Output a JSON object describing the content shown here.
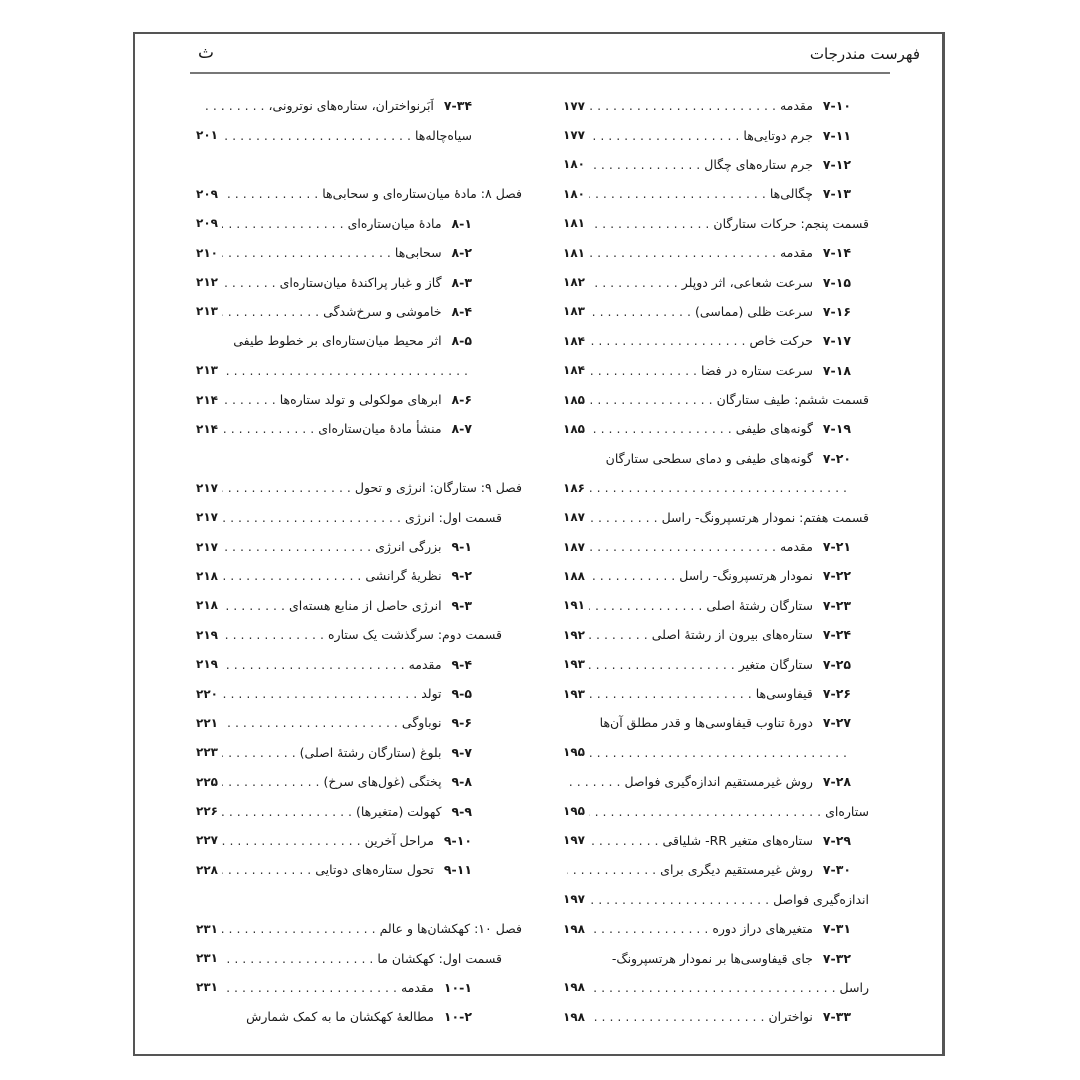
{
  "header": {
    "title": "فهرست مندرجات",
    "page_letter": "ث"
  },
  "columns": {
    "right": [
      {
        "type": "item",
        "num": "۷-۱۰",
        "title": "مقدمه",
        "page": "۱۷۷"
      },
      {
        "type": "item",
        "num": "۷-۱۱",
        "title": "جرم دوتایی‌ها",
        "page": "۱۷۷"
      },
      {
        "type": "item",
        "num": "۷-۱۲",
        "title": "جرم ستاره‌های چگال",
        "page": "۱۸۰"
      },
      {
        "type": "item",
        "num": "۷-۱۳",
        "title": "چگالی‌ها",
        "page": "۱۸۰"
      },
      {
        "type": "section",
        "title": "قسمت پنجم: حرکات ستارگان",
        "page": "۱۸۱"
      },
      {
        "type": "item",
        "num": "۷-۱۴",
        "title": "مقدمه",
        "page": "۱۸۱"
      },
      {
        "type": "item",
        "num": "۷-۱۵",
        "title": "سرعت شعاعی، اثر دوپلر",
        "page": "۱۸۲"
      },
      {
        "type": "item",
        "num": "۷-۱۶",
        "title": "سرعت ظلی (مماسی)",
        "page": "۱۸۳"
      },
      {
        "type": "item",
        "num": "۷-۱۷",
        "title": "حرکت خاص",
        "page": "۱۸۴"
      },
      {
        "type": "item",
        "num": "۷-۱۸",
        "title": "سرعت ستاره در فضا",
        "page": "۱۸۴"
      },
      {
        "type": "section",
        "title": "قسمت ششم: طیف ستارگان",
        "page": "۱۸۵"
      },
      {
        "type": "item",
        "num": "۷-۱۹",
        "title": "گونه‌های طیفی",
        "page": "۱۸۵"
      },
      {
        "type": "item",
        "num": "۷-۲۰",
        "title": "گونه‌های طیفی و دمای سطحی ستارگان"
      },
      {
        "type": "dots",
        "page": "۱۸۶"
      },
      {
        "type": "section",
        "title": "قسمت هفتم: نمودار هرتسپرونگ- راسل",
        "page": "۱۸۷"
      },
      {
        "type": "item",
        "num": "۷-۲۱",
        "title": "مقدمه",
        "page": "۱۸۷"
      },
      {
        "type": "item",
        "num": "۷-۲۲",
        "title": "نمودار هرتسپرونگ- راسل",
        "page": "۱۸۸"
      },
      {
        "type": "item",
        "num": "۷-۲۳",
        "title": "ستارگان رشتهٔ اصلی",
        "page": "۱۹۱"
      },
      {
        "type": "item",
        "num": "۷-۲۴",
        "title": "ستاره‌های بیرون از رشتهٔ اصلی",
        "page": "۱۹۲"
      },
      {
        "type": "item",
        "num": "۷-۲۵",
        "title": "ستارگان متغیر",
        "page": "۱۹۳"
      },
      {
        "type": "item",
        "num": "۷-۲۶",
        "title": "قیفاوسی‌ها",
        "page": "۱۹۳"
      },
      {
        "type": "item",
        "num": "۷-۲۷",
        "title": "دورهٔ تناوب قیفاوسی‌ها و قدر مطلق آن‌ها"
      },
      {
        "type": "dots",
        "page": "۱۹۵"
      },
      {
        "type": "item",
        "num": "۷-۲۸",
        "title": "روش غیرمستقیم اندازه‌گیری فواصل",
        "leader": true
      },
      {
        "type": "cont",
        "title": "ستاره‌ای",
        "page": "۱۹۵"
      },
      {
        "type": "item",
        "num": "۷-۲۹",
        "title": "ستاره‌های متغیر RR- شلیاقی",
        "page": "۱۹۷"
      },
      {
        "type": "item",
        "num": "۷-۳۰",
        "title": "روش غیرمستقیم دیگری برای",
        "leader": true
      },
      {
        "type": "cont",
        "title": "اندازه‌گیری فواصل",
        "page": "۱۹۷"
      },
      {
        "type": "item",
        "num": "۷-۳۱",
        "title": "متغیرهای دراز دوره",
        "page": "۱۹۸"
      },
      {
        "type": "item",
        "num": "۷-۳۲",
        "title": "جای قیفاوسی‌ها بر نمودار هرتسپرونگ-"
      },
      {
        "type": "cont",
        "title": "راسل",
        "page": "۱۹۸"
      },
      {
        "type": "item",
        "num": "۷-۳۳",
        "title": "نواختران",
        "page": "۱۹۸"
      }
    ],
    "left": [
      {
        "type": "first",
        "num": "۷-۳۴",
        "title": "اَبَرنواختران، ستاره‌های نوترونی،",
        "leader": true
      },
      {
        "type": "cont",
        "title": "سیاه‌چاله‌ها",
        "page": "۲۰۱"
      },
      {
        "type": "blank"
      },
      {
        "type": "chapter",
        "title": "فصل ۸: مادهٔ میان‌ستاره‌ای و سحابی‌ها",
        "page": "۲۰۹"
      },
      {
        "type": "item",
        "num": "۸-۱",
        "title": "مادهٔ میان‌ستاره‌ای",
        "page": "۲۰۹"
      },
      {
        "type": "item",
        "num": "۸-۲",
        "title": "سحابی‌ها",
        "page": "۲۱۰"
      },
      {
        "type": "item",
        "num": "۸-۳",
        "title": "گاز و غبار پراکندهٔ میان‌ستاره‌ای",
        "page": "۲۱۲"
      },
      {
        "type": "item",
        "num": "۸-۴",
        "title": "خاموشی و سرخ‌شدگی",
        "page": "۲۱۳"
      },
      {
        "type": "item",
        "num": "۸-۵",
        "title": "اثر محیط میان‌ستاره‌ای بر خطوط طیفی"
      },
      {
        "type": "dots",
        "page": "۲۱۳"
      },
      {
        "type": "item",
        "num": "۸-۶",
        "title": "ابرهای مولکولی و تولد ستاره‌ها",
        "page": "۲۱۴"
      },
      {
        "type": "item",
        "num": "۸-۷",
        "title": "منشأ مادهٔ میان‌ستاره‌ای",
        "page": "۲۱۴"
      },
      {
        "type": "blank"
      },
      {
        "type": "chapter",
        "title": "فصل ۹: ستارگان: انرژی و تحول",
        "page": "۲۱۷"
      },
      {
        "type": "section",
        "title": "قسمت اول: انرژی",
        "page": "۲۱۷"
      },
      {
        "type": "item",
        "num": "۹-۱",
        "title": "بزرگی انرژی",
        "page": "۲۱۷"
      },
      {
        "type": "item",
        "num": "۹-۲",
        "title": "نظریهٔ گرانشی",
        "page": "۲۱۸"
      },
      {
        "type": "item",
        "num": "۹-۳",
        "title": "انرژی حاصل از منابع هسته‌ای",
        "page": "۲۱۸"
      },
      {
        "type": "section",
        "title": "قسمت دوم: سرگذشت یک ستاره",
        "page": "۲۱۹"
      },
      {
        "type": "item",
        "num": "۹-۴",
        "title": "مقدمه",
        "page": "۲۱۹"
      },
      {
        "type": "item",
        "num": "۹-۵",
        "title": "تولد",
        "page": "۲۲۰"
      },
      {
        "type": "item",
        "num": "۹-۶",
        "title": "نوباوگی",
        "page": "۲۲۱"
      },
      {
        "type": "item",
        "num": "۹-۷",
        "title": "بلوغ (ستارگان رشتهٔ اصلی)",
        "page": "۲۲۳"
      },
      {
        "type": "item",
        "num": "۹-۸",
        "title": "پختگی (غول‌های سرخ)",
        "page": "۲۲۵"
      },
      {
        "type": "item",
        "num": "۹-۹",
        "title": "کهولت (متغیرها)",
        "page": "۲۲۶"
      },
      {
        "type": "item",
        "num": "۹-۱۰",
        "title": "مراحل آخرین",
        "page": "۲۲۷"
      },
      {
        "type": "item",
        "num": "۹-۱۱",
        "title": "تحول ستاره‌های دوتایی",
        "page": "۲۲۸"
      },
      {
        "type": "blank"
      },
      {
        "type": "chapter",
        "title": "فصل ۱۰: کهکشان‌ها و عالم",
        "page": "۲۳۱"
      },
      {
        "type": "section",
        "title": "قسمت اول: کهکشان ما",
        "page": "۲۳۱"
      },
      {
        "type": "item",
        "num": "۱۰-۱",
        "title": "مقدمه",
        "page": "۲۳۱"
      },
      {
        "type": "item",
        "num": "۱۰-۲",
        "title": "مطالعهٔ کهکشان ما به کمک شمارش"
      }
    ]
  }
}
